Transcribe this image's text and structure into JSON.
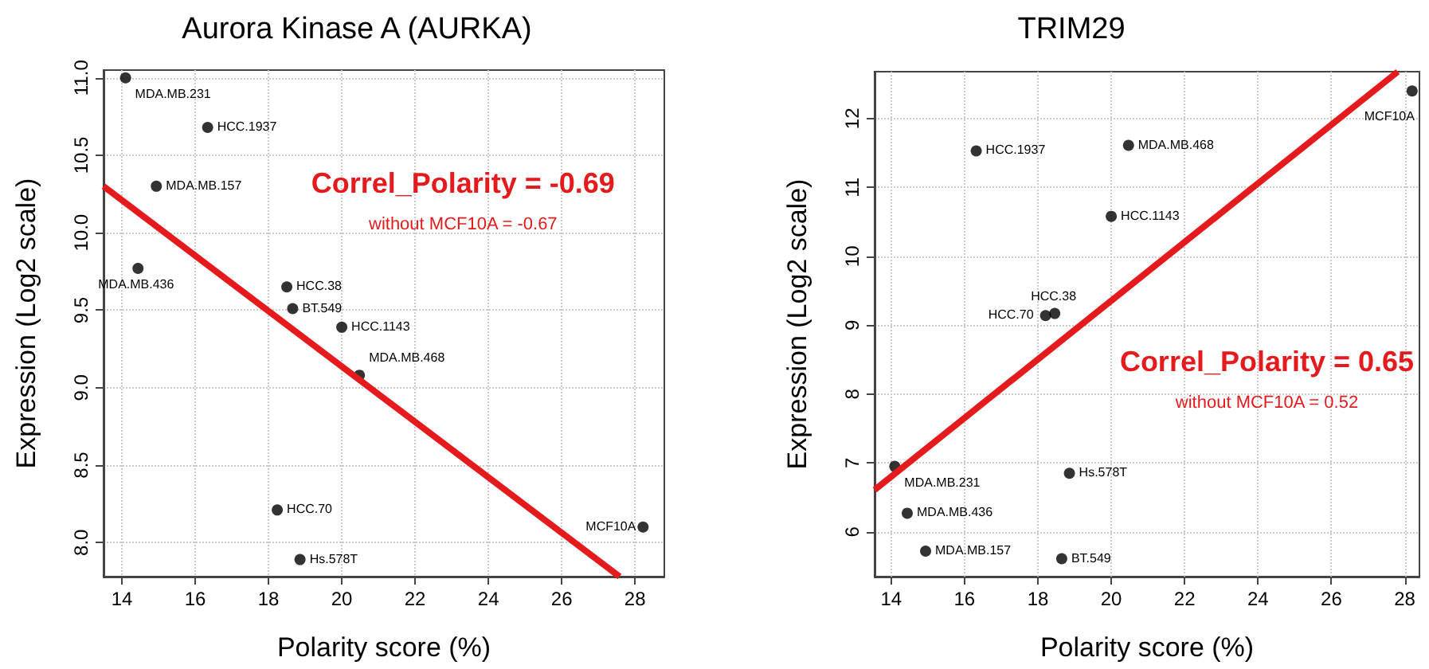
{
  "chart_data": [
    {
      "type": "scatter",
      "title": "Aurora Kinase A (AURKA)",
      "xlabel": "Polarity score (%)",
      "ylabel": "Expression (Log2 scale)",
      "xlim": [
        13.5,
        28.8
      ],
      "ylim": [
        7.78,
        11.05
      ],
      "xticks": [
        14,
        16,
        18,
        20,
        22,
        24,
        26,
        28
      ],
      "yticks": [
        {
          "value": 8,
          "label": "8.0"
        },
        8.5,
        {
          "value": 9,
          "label": "9.0"
        },
        9.5,
        {
          "value": 10,
          "label": "10.0"
        },
        10.5,
        {
          "value": 11,
          "label": "11.0"
        }
      ],
      "grid": true,
      "marker": "circle",
      "series": [
        {
          "color": "#000000",
          "x": [
            14.1,
            16.34,
            14.94,
            14.44,
            18.5,
            18.66,
            20.0,
            20.48,
            18.24,
            18.86,
            28.22
          ],
          "values": [
            11.0,
            10.68,
            10.3,
            9.77,
            9.65,
            9.51,
            9.39,
            9.08,
            8.21,
            7.89,
            8.1
          ]
        },
        {
          "type": "line",
          "marker": "none",
          "color": "#e41a1c",
          "line_style": "solid",
          "x": [
            13.5,
            27.58
          ],
          "values": [
            10.3,
            7.78
          ]
        }
      ],
      "annotations": [
        "Correl_Polarity = -0.69",
        "without MCF10A = -0.67",
        {
          "text": "MDA.MB.231",
          "x": 14.1,
          "y": 11.0
        },
        {
          "text": "HCC.1937",
          "x": 16.34,
          "y": 10.68
        },
        {
          "text": "MDA.MB.157",
          "x": 14.94,
          "y": 10.3
        },
        {
          "text": "MDA.MB.436",
          "x": 14.44,
          "y": 9.77
        },
        {
          "text": "HCC.38",
          "x": 18.5,
          "y": 9.65
        },
        {
          "text": "BT.549",
          "x": 18.66,
          "y": 9.51
        },
        {
          "text": "HCC.1143",
          "x": 20.0,
          "y": 9.39
        },
        {
          "text": "MDA.MB.468",
          "x": 20.48,
          "y": 9.08
        },
        {
          "text": "HCC.70",
          "x": 18.24,
          "y": 8.21
        },
        {
          "text": "Hs.578T",
          "x": 18.86,
          "y": 7.89
        },
        {
          "text": "MCF10A",
          "x": 28.22,
          "y": 8.1
        }
      ]
    },
    {
      "type": "scatter",
      "title": "TRIM29",
      "xlabel": "Polarity score (%)",
      "ylabel": "Expression (Log2 scale)",
      "xlim": [
        13.55,
        28.4
      ],
      "ylim": [
        5.35,
        12.68
      ],
      "xticks": [
        14,
        16,
        18,
        20,
        22,
        24,
        26,
        28
      ],
      "yticks": [
        6,
        7,
        8,
        9,
        10,
        11,
        12
      ],
      "grid": true,
      "marker": "circle",
      "series": [
        {
          "color": "#000000",
          "x": [
            16.32,
            20.47,
            20.0,
            18.21,
            18.46,
            14.1,
            18.86,
            14.44,
            14.94,
            18.65,
            28.2
          ],
          "values": [
            11.53,
            11.61,
            10.58,
            9.14,
            9.17,
            6.95,
            6.85,
            6.27,
            5.72,
            5.61,
            12.4
          ]
        },
        {
          "type": "line",
          "marker": "none",
          "color": "#e41a1c",
          "line_style": "solid",
          "x": [
            13.55,
            27.81
          ],
          "values": [
            6.61,
            12.68
          ]
        }
      ],
      "annotations": [
        "Correl_Polarity = 0.65",
        "without MCF10A = 0.52",
        {
          "text": "HCC.1937",
          "x": 16.32,
          "y": 11.53
        },
        {
          "text": "MDA.MB.468",
          "x": 20.47,
          "y": 11.61
        },
        {
          "text": "HCC.1143",
          "x": 20.0,
          "y": 10.58
        },
        {
          "text": "HCC.70",
          "x": 18.21,
          "y": 9.14
        },
        {
          "text": "HCC.38",
          "x": 18.46,
          "y": 9.17
        },
        {
          "text": "MDA.MB.231",
          "x": 14.1,
          "y": 6.95
        },
        {
          "text": "Hs.578T",
          "x": 18.86,
          "y": 6.85
        },
        {
          "text": "MDA.MB.436",
          "x": 14.44,
          "y": 6.27
        },
        {
          "text": "MDA.MB.157",
          "x": 14.94,
          "y": 5.72
        },
        {
          "text": "BT.549",
          "x": 18.65,
          "y": 5.61
        },
        {
          "text": "MCF10A",
          "x": 28.2,
          "y": 12.4
        }
      ]
    }
  ]
}
